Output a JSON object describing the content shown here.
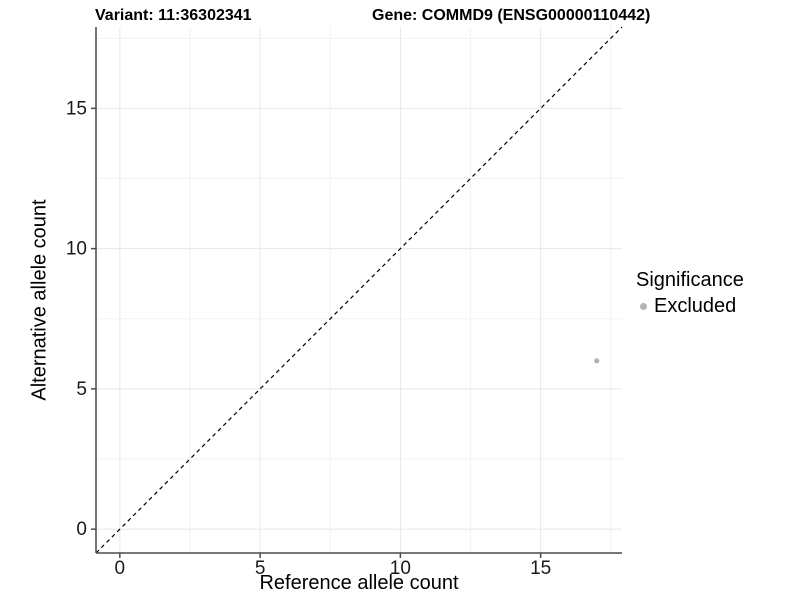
{
  "chart_data": {
    "type": "scatter",
    "title_left": "Variant: 11:36302341",
    "title_right": "Gene: COMMD9 (ENSG00000110442)",
    "xlabel": "Reference allele count",
    "ylabel": "Alternative allele count",
    "xlim": [
      -0.85,
      17.9
    ],
    "ylim": [
      -0.85,
      17.9
    ],
    "xticks": [
      0,
      5,
      10,
      15
    ],
    "yticks": [
      0,
      5,
      10,
      15
    ],
    "minor_gridlines_x": [
      2.5,
      7.5,
      12.5,
      17.5
    ],
    "minor_gridlines_y": [
      2.5,
      7.5,
      12.5,
      17.5
    ],
    "grid": "major and minor gridlines, light gray on white, axis lines left and bottom only",
    "reference_line": {
      "type": "identity y=x",
      "style": "dashed",
      "color": "#000000",
      "from": [
        -0.85,
        -0.85
      ],
      "to": [
        17.9,
        17.9
      ]
    },
    "series": [
      {
        "name": "Excluded",
        "color": "#b3b3b3",
        "points": [
          [
            17,
            6
          ]
        ]
      }
    ],
    "legend": {
      "title": "Significance",
      "position": "right",
      "entries": [
        {
          "label": "Excluded",
          "color": "#b3b3b3"
        }
      ]
    },
    "colors": {
      "axis_line": "#4a4a4a",
      "grid_major": "#e8e8e8",
      "grid_minor": "#f2f2f2",
      "tick_text": "#1a1a1a",
      "background": "#ffffff"
    }
  }
}
